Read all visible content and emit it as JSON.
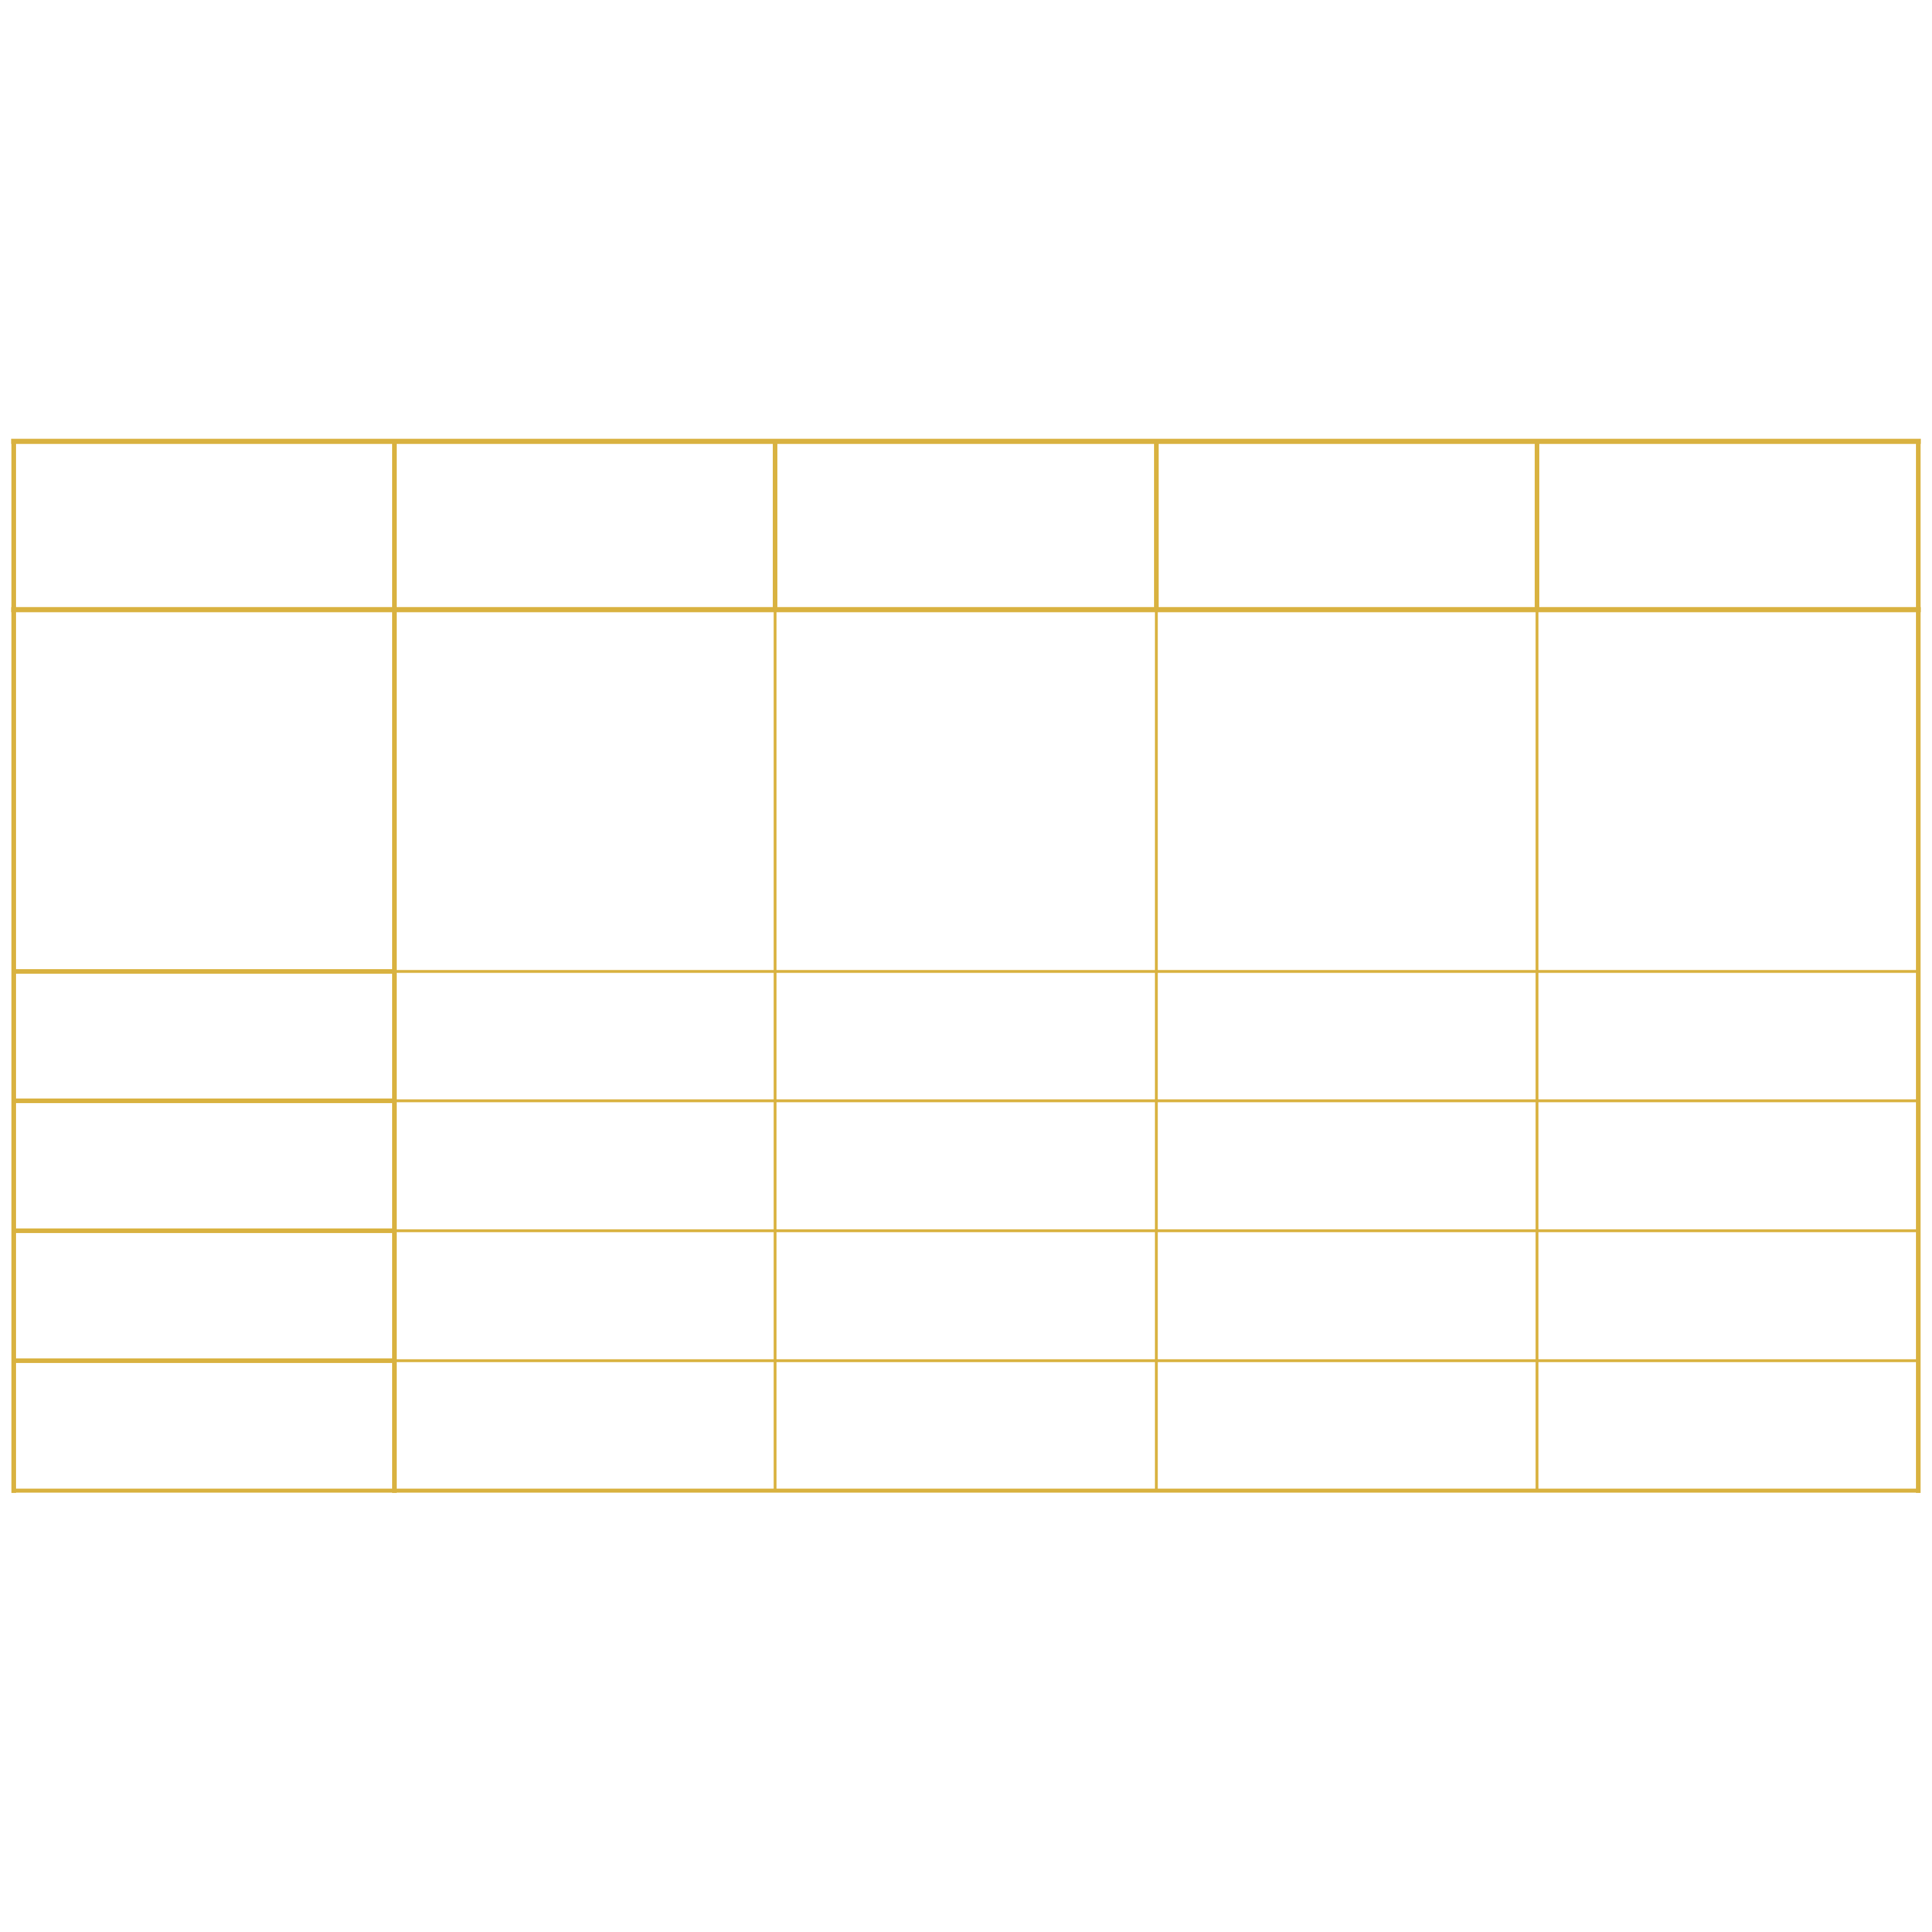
{
  "table": {
    "line_color": "#d9b240",
    "background": "#ffffff",
    "column_count": 5,
    "row_count": 6,
    "header": [
      "",
      "",
      "",
      "",
      ""
    ],
    "rows": [
      [
        "",
        "",
        "",
        "",
        ""
      ],
      [
        "",
        "",
        "",
        "",
        ""
      ],
      [
        "",
        "",
        "",
        "",
        ""
      ],
      [
        "",
        "",
        "",
        "",
        ""
      ],
      [
        "",
        "",
        "",
        "",
        ""
      ]
    ]
  }
}
